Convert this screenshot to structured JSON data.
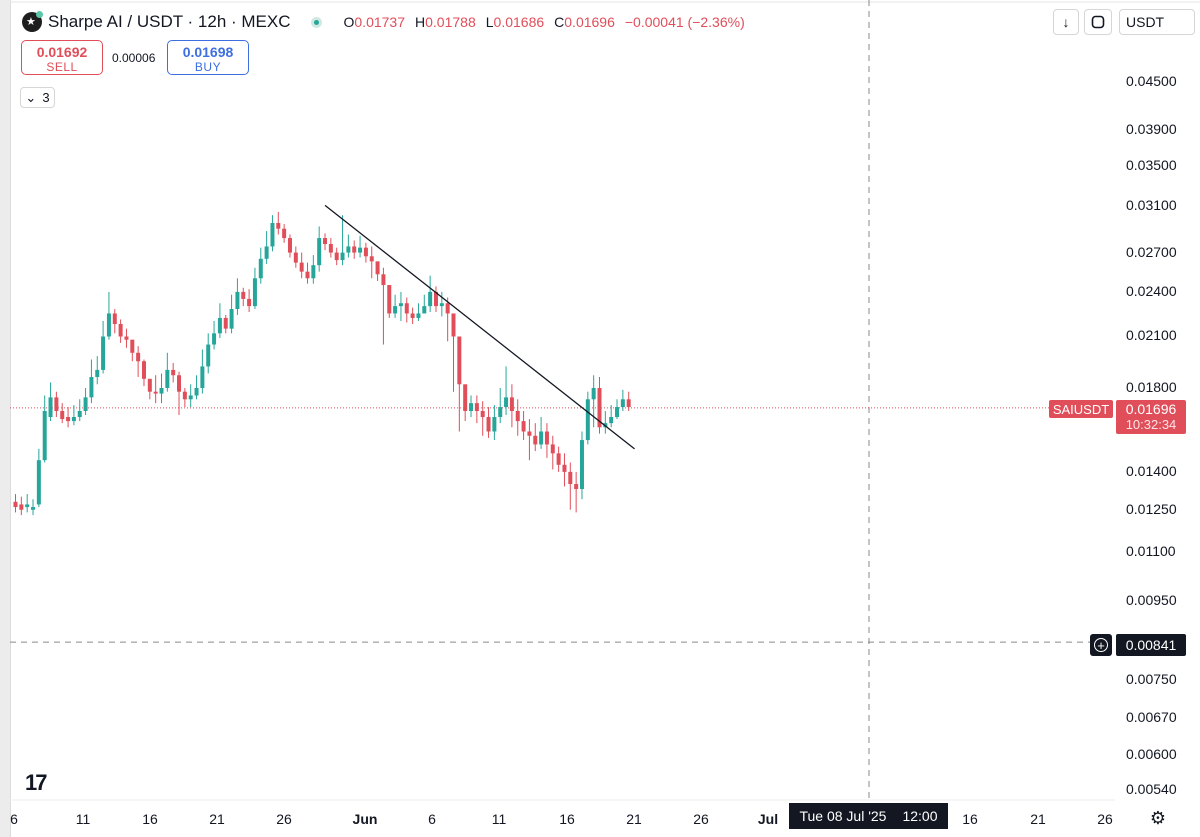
{
  "header": {
    "title": "Sharpe AI / USDT · 12h · MEXC",
    "ohlc": [
      {
        "k": "O",
        "v": "0.01737"
      },
      {
        "k": "H",
        "v": "0.01788"
      },
      {
        "k": "L",
        "v": "0.01686"
      },
      {
        "k": "C",
        "v": "0.01696"
      }
    ],
    "change": "−0.00041 (−2.36%)"
  },
  "trade": {
    "sell_price": "0.01692",
    "sell_label": "SELL",
    "spread": "0.00006",
    "buy_price": "0.01698",
    "buy_label": "BUY"
  },
  "indicators_count": "3",
  "toolbar": {
    "currency": "USDT"
  },
  "price_axis": [
    "0.04500",
    "0.03900",
    "0.03500",
    "0.03100",
    "0.02700",
    "0.02400",
    "0.02100",
    "0.01800",
    "0.01400",
    "0.01250",
    "0.01100",
    "0.00950",
    "0.00750",
    "0.00670",
    "0.00600",
    "0.00540"
  ],
  "time_axis": [
    "6",
    "11",
    "16",
    "21",
    "26",
    "Jun",
    "6",
    "11",
    "16",
    "21",
    "26",
    "Jul",
    "16",
    "21",
    "26"
  ],
  "last_price": {
    "symbol": "SAIUSDT",
    "price": "0.01696",
    "countdown": "10:32:34"
  },
  "crosshair": {
    "price": "0.00841",
    "date": "Tue 08 Jul '25",
    "time": "12:00"
  },
  "colors": {
    "up": "#26a69a",
    "down": "#e04e5a",
    "buy": "#3d6fe0"
  },
  "chart_data": {
    "type": "candlestick",
    "symbol": "SAIUSDT",
    "exchange": "MEXC",
    "interval": "12h",
    "scale": "log",
    "ylim": [
      0.0052,
      0.048
    ],
    "trendline": {
      "from": {
        "date": "May 29",
        "price": 0.0311
      },
      "to": {
        "date": "Jun 27",
        "price": 0.015
      }
    },
    "candles": [
      [
        0.0128,
        0.0127,
        0.0126,
        0.0125,
        0.0127,
        0.0145,
        0.0165,
        0.0175,
        0.0168,
        0.0165,
        0.0163,
        0.0165,
        0.0168,
        0.0175,
        0.0186,
        0.019,
        0.021,
        0.0225,
        0.0218,
        0.021,
        0.0208,
        0.02,
        0.0195,
        0.0185,
        0.0178,
        0.0177,
        0.018,
        0.019,
        0.0187,
        0.0178,
        0.0174,
        0.0176,
        0.018,
        0.0192,
        0.0205,
        0.0212,
        0.0222,
        0.0215,
        0.0228,
        0.024,
        0.0235,
        0.023,
        0.025,
        0.0265,
        0.0275,
        0.0295,
        0.029,
        0.0282,
        0.027,
        0.0262,
        0.0255,
        0.025,
        0.026,
        0.0282,
        0.0277,
        0.027,
        0.0264,
        0.027,
        0.0275,
        0.027,
        0.0274,
        0.0267,
        0.0263,
        0.0253,
        0.0245,
        0.0225,
        0.023,
        0.0232,
        0.0225,
        0.0222,
        0.0225,
        0.023,
        0.024,
        0.023,
        0.0232,
        0.0225,
        0.021,
        0.0182,
        0.0168,
        0.0172,
        0.0168,
        0.0165,
        0.0158,
        0.0165,
        0.017,
        0.0175,
        0.0168,
        0.0163,
        0.0158,
        0.0156,
        0.0152,
        0.0158,
        0.0152,
        0.0148,
        0.0143,
        0.014,
        0.0135,
        0.0133,
        0.0154,
        0.0174,
        0.018,
        0.016,
        0.0162,
        0.0165,
        0.017,
        0.0174
      ],
      [
        0.0126,
        0.0125,
        0.0127,
        0.0126,
        0.0145,
        0.0168,
        0.0175,
        0.0168,
        0.0164,
        0.0163,
        0.0165,
        0.0168,
        0.0175,
        0.0186,
        0.019,
        0.021,
        0.0225,
        0.0218,
        0.021,
        0.0208,
        0.02,
        0.0195,
        0.0185,
        0.0178,
        0.0177,
        0.018,
        0.019,
        0.0187,
        0.0178,
        0.0174,
        0.0176,
        0.018,
        0.0192,
        0.0205,
        0.0212,
        0.0222,
        0.0215,
        0.0228,
        0.024,
        0.0235,
        0.023,
        0.025,
        0.0265,
        0.0275,
        0.0295,
        0.029,
        0.0282,
        0.027,
        0.0262,
        0.0255,
        0.025,
        0.026,
        0.0282,
        0.0277,
        0.027,
        0.0264,
        0.027,
        0.0275,
        0.027,
        0.0274,
        0.0267,
        0.0263,
        0.0253,
        0.0245,
        0.0225,
        0.023,
        0.0232,
        0.0225,
        0.0222,
        0.0225,
        0.023,
        0.024,
        0.023,
        0.0232,
        0.0225,
        0.021,
        0.0182,
        0.0168,
        0.0172,
        0.0168,
        0.0165,
        0.0158,
        0.0165,
        0.017,
        0.0175,
        0.0168,
        0.0163,
        0.0158,
        0.0156,
        0.0152,
        0.0158,
        0.0152,
        0.0148,
        0.0143,
        0.014,
        0.0135,
        0.0133,
        0.0154,
        0.0174,
        0.018,
        0.016,
        0.0162,
        0.0165,
        0.017,
        0.0174,
        0.017
      ],
      [
        0.0131,
        0.013,
        0.0131,
        0.0129,
        0.015,
        0.0176,
        0.0183,
        0.0178,
        0.0172,
        0.017,
        0.0171,
        0.0174,
        0.018,
        0.0196,
        0.0198,
        0.022,
        0.024,
        0.0228,
        0.0221,
        0.0215,
        0.0208,
        0.0204,
        0.0196,
        0.0185,
        0.0187,
        0.0188,
        0.02,
        0.0194,
        0.0189,
        0.018,
        0.0182,
        0.0187,
        0.0202,
        0.0212,
        0.022,
        0.0232,
        0.0224,
        0.0238,
        0.025,
        0.0243,
        0.0242,
        0.0258,
        0.0274,
        0.0288,
        0.0302,
        0.0305,
        0.0294,
        0.0285,
        0.0275,
        0.027,
        0.0262,
        0.0268,
        0.0292,
        0.0286,
        0.0282,
        0.0274,
        0.0302,
        0.0285,
        0.028,
        0.0284,
        0.0278,
        0.0275,
        0.0262,
        0.0258,
        0.024,
        0.0238,
        0.024,
        0.0236,
        0.0229,
        0.0232,
        0.0238,
        0.0252,
        0.0244,
        0.024,
        0.0236,
        0.0225,
        0.0198,
        0.0178,
        0.0176,
        0.0176,
        0.0173,
        0.017,
        0.0171,
        0.018,
        0.0192,
        0.0182,
        0.0174,
        0.0168,
        0.0164,
        0.0162,
        0.0165,
        0.0162,
        0.0156,
        0.0151,
        0.0148,
        0.0144,
        0.014,
        0.0158,
        0.0178,
        0.0187,
        0.0186,
        0.0168,
        0.0171,
        0.0174,
        0.0179,
        0.0178
      ],
      [
        0.0124,
        0.0123,
        0.0124,
        0.0123,
        0.0126,
        0.0144,
        0.0163,
        0.0165,
        0.0162,
        0.016,
        0.0161,
        0.0163,
        0.0166,
        0.0172,
        0.0182,
        0.0188,
        0.0208,
        0.0212,
        0.0206,
        0.0203,
        0.0195,
        0.0186,
        0.0181,
        0.0174,
        0.0172,
        0.0172,
        0.0178,
        0.0183,
        0.0166,
        0.017,
        0.017,
        0.0174,
        0.0177,
        0.0188,
        0.0202,
        0.0209,
        0.0212,
        0.0212,
        0.0224,
        0.023,
        0.0226,
        0.0228,
        0.0246,
        0.0261,
        0.0271,
        0.0285,
        0.0278,
        0.0266,
        0.0258,
        0.025,
        0.0246,
        0.0246,
        0.0255,
        0.0272,
        0.0266,
        0.026,
        0.026,
        0.0266,
        0.0265,
        0.0266,
        0.0262,
        0.025,
        0.0248,
        0.0205,
        0.0222,
        0.0222,
        0.022,
        0.0219,
        0.0218,
        0.022,
        0.0226,
        0.0226,
        0.0226,
        0.0223,
        0.0207,
        0.0178,
        0.0158,
        0.0163,
        0.0165,
        0.0162,
        0.0156,
        0.0155,
        0.0154,
        0.0162,
        0.0166,
        0.016,
        0.0156,
        0.0154,
        0.0145,
        0.0149,
        0.015,
        0.0146,
        0.0141,
        0.014,
        0.0134,
        0.0125,
        0.0124,
        0.0129,
        0.0152,
        0.016,
        0.0157,
        0.0157,
        0.016,
        0.0164,
        0.0168,
        0.0168
      ]
    ]
  }
}
